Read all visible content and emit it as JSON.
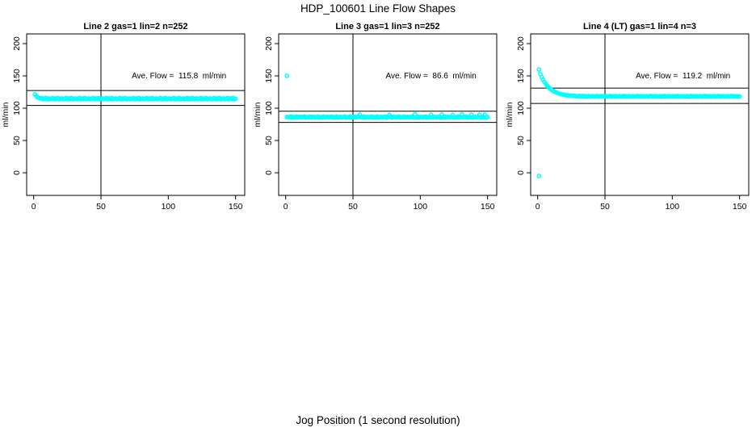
{
  "title": "HDP_100601  Line Flow Shapes",
  "xlabel": "Jog Position (1 second resolution)",
  "colors": {
    "point": "#00FFFF",
    "axis": "#000000"
  },
  "chart_data": [
    {
      "type": "scatter",
      "title": "Line 2 gas=1 lin=2 n=252",
      "ylabel": "ml/min",
      "annotation": "Ave. Flow =  115.8  ml/min",
      "ave_flow_ml_min": 115.8,
      "x_ticks": [
        0,
        50,
        100,
        150
      ],
      "y_ticks": [
        0,
        50,
        100,
        150,
        200
      ],
      "xlim": [
        -5.2,
        156.8
      ],
      "ylim": [
        -35,
        215
      ],
      "vline_x": 50,
      "hlines": [
        127.4,
        104.2
      ],
      "annotation_pos": [
        108,
        150
      ],
      "x_start": 1,
      "x_step": 1,
      "y": [
        121.5,
        118.6,
        116.9,
        115.9,
        115.3,
        115.4,
        114.0,
        114.8,
        115.6,
        113.6,
        115.0,
        114.1,
        114.7,
        115.6,
        113.7,
        115.0,
        114.2,
        115.7,
        113.9,
        114.6,
        115.0,
        114.1,
        114.7,
        115.6,
        113.7,
        115.0,
        114.2,
        115.7,
        113.9,
        114.6,
        115.0,
        114.1,
        114.7,
        115.6,
        113.7,
        115.0,
        114.2,
        115.7,
        113.9,
        114.6,
        115.0,
        114.1,
        114.7,
        115.6,
        113.7,
        115.0,
        114.2,
        115.7,
        113.9,
        114.6,
        115.0,
        114.1,
        114.7,
        115.6,
        113.7,
        115.0,
        114.2,
        115.7,
        113.9,
        114.6,
        115.0,
        114.1,
        114.7,
        115.6,
        113.7,
        115.0,
        114.2,
        115.7,
        113.9,
        114.6,
        115.0,
        114.1,
        114.7,
        115.6,
        113.7,
        115.0,
        114.2,
        115.7,
        113.9,
        114.6,
        115.0,
        114.1,
        114.7,
        115.6,
        113.7,
        115.0,
        114.2,
        115.7,
        113.9,
        114.6,
        115.0,
        114.1,
        114.7,
        115.6,
        113.7,
        115.0,
        114.2,
        115.7,
        113.9,
        114.6,
        115.0,
        114.1,
        114.7,
        115.6,
        113.7,
        115.0,
        114.2,
        115.7,
        113.9,
        114.6,
        115.0,
        114.1,
        114.7,
        115.6,
        113.7,
        115.0,
        114.2,
        115.7,
        113.9,
        114.6,
        115.0,
        114.1,
        114.7,
        115.6,
        113.7,
        115.0,
        114.2,
        115.7,
        113.9,
        114.6,
        115.0,
        114.1,
        114.7,
        115.6,
        113.7,
        115.0,
        114.2,
        115.7,
        113.9,
        114.6,
        115.0,
        114.1,
        114.7,
        115.6,
        113.7,
        115.0,
        114.2,
        115.7,
        113.9,
        114.6
      ],
      "outliers": []
    },
    {
      "type": "scatter",
      "title": "Line 3 gas=1 lin=3 n=252",
      "ylabel": "ml/min",
      "annotation": "Ave. Flow =  86.6  ml/min",
      "ave_flow_ml_min": 86.6,
      "x_ticks": [
        0,
        50,
        100,
        150
      ],
      "y_ticks": [
        0,
        50,
        100,
        150,
        200
      ],
      "xlim": [
        -5.2,
        156.8
      ],
      "ylim": [
        -35,
        215
      ],
      "vline_x": 50,
      "hlines": [
        95.3,
        77.9
      ],
      "annotation_pos": [
        108,
        150
      ],
      "x_start": 1,
      "x_step": 1,
      "y": [
        86.5,
        85.8,
        86.4,
        87.1,
        85.4,
        86.2,
        85.6,
        87.0,
        85.5,
        86.3,
        86.5,
        85.8,
        86.4,
        87.1,
        85.4,
        86.2,
        85.6,
        87.0,
        85.5,
        86.3,
        86.5,
        85.8,
        86.4,
        87.1,
        85.4,
        86.2,
        85.6,
        87.0,
        85.5,
        86.3,
        86.5,
        85.8,
        86.4,
        87.1,
        85.4,
        86.2,
        85.6,
        87.0,
        85.5,
        86.3,
        86.5,
        85.8,
        86.4,
        87.1,
        85.4,
        86.2,
        85.6,
        87.0,
        85.5,
        86.3,
        86.5,
        85.8,
        86.4,
        87.1,
        90.0,
        86.2,
        85.6,
        87.0,
        85.5,
        86.3,
        86.5,
        85.8,
        86.4,
        87.1,
        85.4,
        86.2,
        85.6,
        87.0,
        85.5,
        86.3,
        86.5,
        85.8,
        86.4,
        87.1,
        85.4,
        86.2,
        89.5,
        87.0,
        85.5,
        86.3,
        86.5,
        85.8,
        86.4,
        87.1,
        85.4,
        86.2,
        85.6,
        87.0,
        85.5,
        86.3,
        86.5,
        85.8,
        86.4,
        87.1,
        85.4,
        90.5,
        85.6,
        87.0,
        85.5,
        86.3,
        86.5,
        85.8,
        86.4,
        87.1,
        85.4,
        86.2,
        85.6,
        89.8,
        85.5,
        86.3,
        86.5,
        85.8,
        86.4,
        87.1,
        85.4,
        90.2,
        85.6,
        87.0,
        85.5,
        86.3,
        86.5,
        85.8,
        86.4,
        89.6,
        85.4,
        86.2,
        85.6,
        87.0,
        85.5,
        86.3,
        90.4,
        85.8,
        86.4,
        87.1,
        85.4,
        86.2,
        85.6,
        90.0,
        85.5,
        86.3,
        86.5,
        85.8,
        86.4,
        89.7,
        85.4,
        86.2,
        85.6,
        90.1,
        85.5,
        86.3
      ],
      "outliers": [
        [
          1,
          150.0
        ]
      ]
    },
    {
      "type": "scatter",
      "title": "Line 4 (LT) gas=1 lin=4 n=3",
      "ylabel": "ml/min",
      "annotation": "Ave. Flow =  119.2  ml/min",
      "ave_flow_ml_min": 119.2,
      "x_ticks": [
        0,
        50,
        100,
        150
      ],
      "y_ticks": [
        0,
        50,
        100,
        150,
        200
      ],
      "xlim": [
        -5.2,
        156.8
      ],
      "ylim": [
        -35,
        215
      ],
      "vline_x": 50,
      "hlines": [
        131.1,
        107.3
      ],
      "annotation_pos": [
        108,
        150
      ],
      "x_start": 1,
      "x_step": 1,
      "y": [
        159.8,
        152.7,
        148.1,
        144.1,
        140.6,
        137.6,
        135.0,
        132.7,
        130.7,
        129.1,
        127.6,
        126.3,
        125.2,
        124.3,
        123.4,
        122.7,
        122.1,
        121.5,
        121.1,
        120.6,
        120.3,
        120.0,
        119.7,
        119.5,
        119.3,
        119.1,
        118.9,
        118.8,
        118.7,
        118.6,
        118.9,
        118.1,
        118.6,
        119.0,
        117.9,
        118.4,
        118.0,
        118.8,
        117.9,
        118.2,
        118.6,
        117.9,
        118.3,
        118.9,
        117.8,
        118.4,
        118.0,
        118.7,
        117.9,
        118.2,
        118.6,
        117.9,
        118.3,
        118.9,
        117.8,
        118.4,
        118.0,
        118.7,
        117.9,
        118.2,
        118.6,
        117.9,
        118.3,
        118.9,
        117.8,
        118.4,
        118.0,
        118.7,
        117.9,
        118.2,
        118.6,
        117.9,
        118.3,
        118.9,
        117.8,
        118.4,
        118.0,
        118.7,
        117.9,
        118.2,
        118.6,
        117.9,
        118.3,
        118.9,
        117.8,
        118.4,
        118.0,
        118.7,
        117.9,
        118.2,
        118.6,
        117.9,
        118.3,
        118.9,
        117.8,
        118.4,
        118.0,
        118.7,
        117.9,
        118.2,
        118.6,
        117.9,
        118.3,
        118.9,
        117.8,
        118.4,
        118.0,
        118.7,
        117.9,
        118.2,
        118.6,
        117.9,
        118.3,
        118.9,
        117.8,
        118.4,
        118.0,
        118.7,
        117.9,
        118.2,
        118.6,
        117.9,
        118.3,
        118.9,
        117.8,
        118.4,
        118.0,
        118.7,
        117.9,
        118.2,
        118.6,
        117.9,
        118.3,
        118.9,
        117.8,
        118.4,
        118.0,
        118.7,
        117.9,
        118.2,
        118.6,
        117.9,
        118.3,
        118.9,
        117.8,
        118.4,
        118.0,
        118.7,
        117.9,
        118.2
      ],
      "outliers": [
        [
          1,
          -5.0
        ]
      ]
    }
  ]
}
